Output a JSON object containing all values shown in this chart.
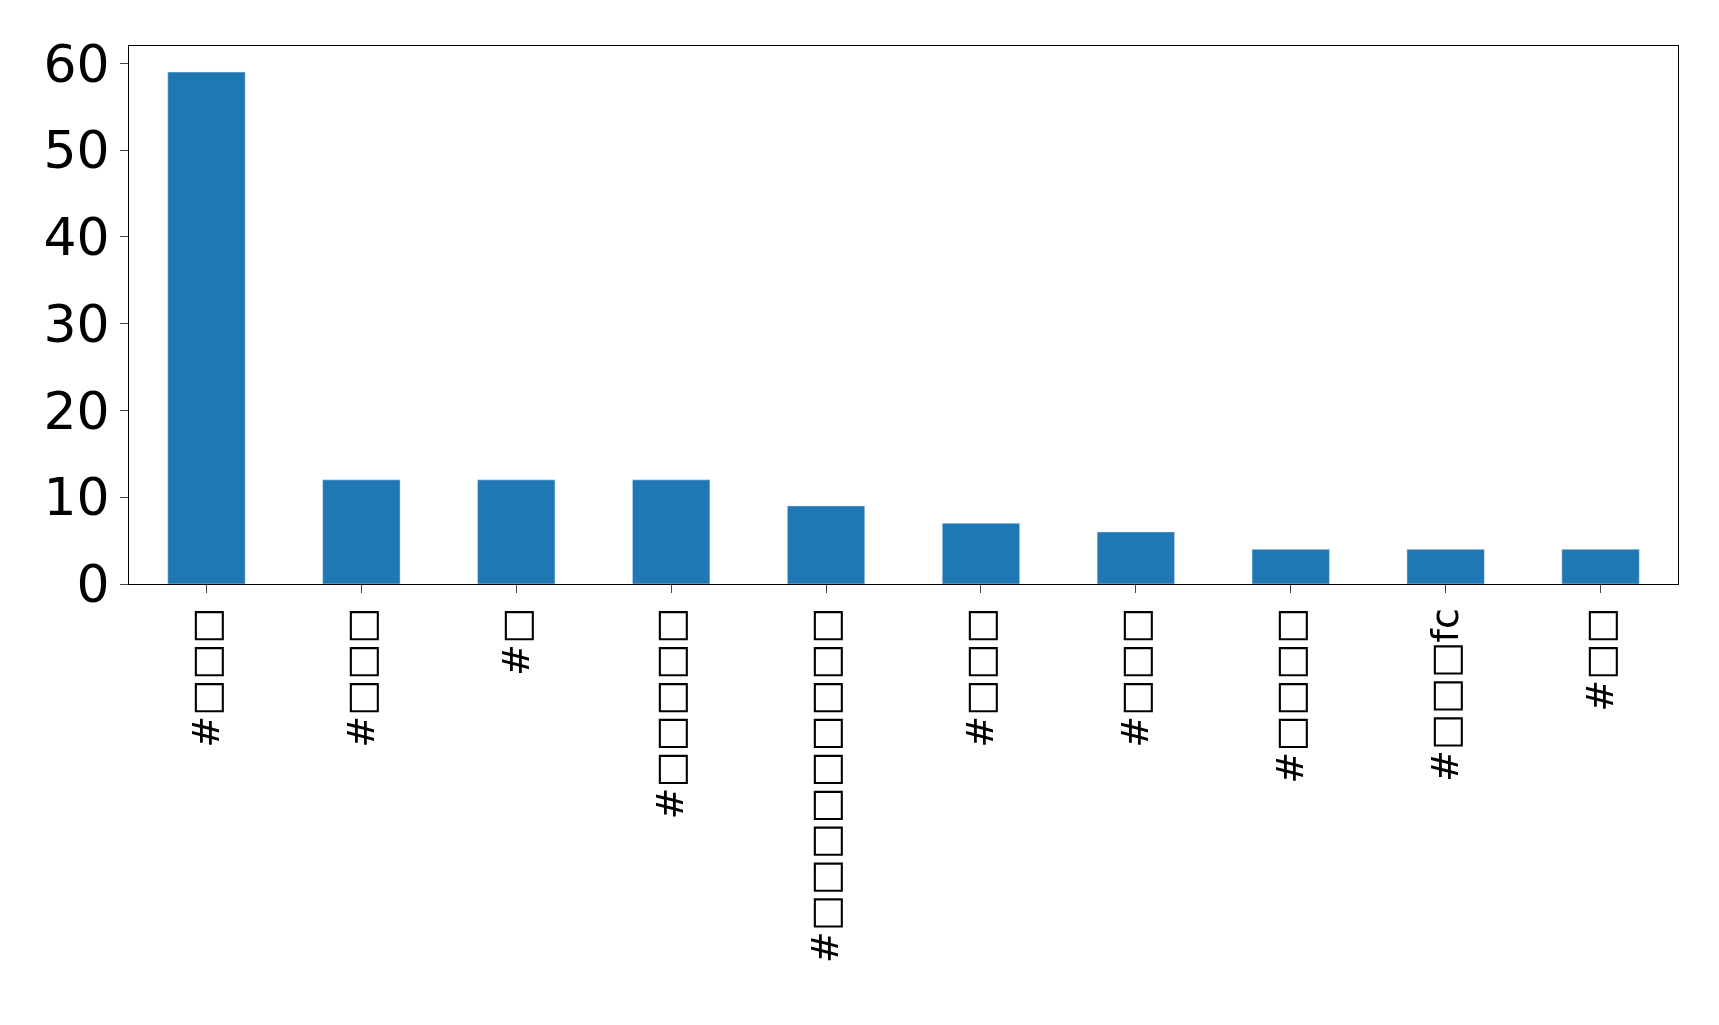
{
  "chart_data": {
    "type": "bar",
    "categories": [
      "#□□□",
      "#□□□",
      "#□",
      "#□□□□□",
      "#□□□□□□□□□",
      "#□□□",
      "#□□□",
      "#□□□□",
      "#□□□fc",
      "#□□"
    ],
    "values": [
      59,
      12,
      12,
      12,
      9,
      7,
      6,
      4,
      4,
      4
    ],
    "color": "#1f77b4",
    "ylim": [
      0,
      62
    ],
    "yticks": [
      0,
      10,
      20,
      30,
      40,
      50,
      60
    ]
  }
}
